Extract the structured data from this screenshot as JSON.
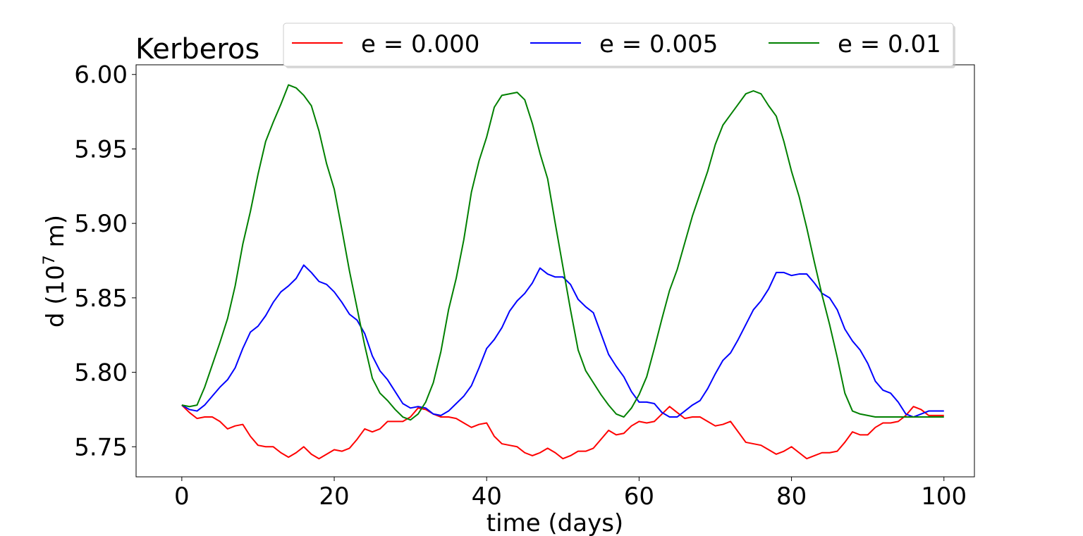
{
  "chart_data": {
    "type": "line",
    "title": "Kerberos",
    "xlabel": "time (days)",
    "ylabel_base": "d (10",
    "ylabel_sup": "7",
    "ylabel_end": " m)",
    "xlim": [
      -6,
      104
    ],
    "ylim": [
      5.7298,
      6.0065
    ],
    "xticks": [
      0,
      20,
      40,
      60,
      80,
      100
    ],
    "xtick_labels": [
      "0",
      "20",
      "40",
      "60",
      "80",
      "100"
    ],
    "yticks": [
      5.75,
      5.8,
      5.85,
      5.9,
      5.95,
      6.0
    ],
    "ytick_labels": [
      "5.75",
      "5.80",
      "5.85",
      "5.90",
      "5.95",
      "6.00"
    ],
    "legend_position": "top-center",
    "x": [
      0,
      1,
      2,
      3,
      4,
      5,
      6,
      7,
      8,
      9,
      10,
      11,
      12,
      13,
      14,
      15,
      16,
      17,
      18,
      19,
      20,
      21,
      22,
      23,
      24,
      25,
      26,
      27,
      28,
      29,
      30,
      31,
      32,
      33,
      34,
      35,
      36,
      37,
      38,
      39,
      40,
      41,
      42,
      43,
      44,
      45,
      46,
      47,
      48,
      49,
      50,
      51,
      52,
      53,
      54,
      55,
      56,
      57,
      58,
      59,
      60,
      61,
      62,
      63,
      64,
      65,
      66,
      67,
      68,
      69,
      70,
      71,
      72,
      73,
      74,
      75,
      76,
      77,
      78,
      79,
      80,
      81,
      82,
      83,
      84,
      85,
      86,
      87,
      88,
      89,
      90,
      91,
      92,
      93,
      94,
      95,
      96,
      97,
      98,
      99,
      100
    ],
    "series": [
      {
        "name": "e = 0.000",
        "color": "#ff0000",
        "values": [
          5.778,
          5.773,
          5.769,
          5.77,
          5.77,
          5.767,
          5.762,
          5.764,
          5.765,
          5.757,
          5.751,
          5.75,
          5.75,
          5.746,
          5.743,
          5.746,
          5.75,
          5.745,
          5.742,
          5.745,
          5.748,
          5.747,
          5.749,
          5.755,
          5.762,
          5.76,
          5.762,
          5.767,
          5.767,
          5.767,
          5.77,
          5.776,
          5.775,
          5.772,
          5.77,
          5.77,
          5.769,
          5.766,
          5.763,
          5.765,
          5.766,
          5.757,
          5.752,
          5.751,
          5.75,
          5.746,
          5.744,
          5.746,
          5.749,
          5.746,
          5.742,
          5.744,
          5.747,
          5.747,
          5.749,
          5.755,
          5.761,
          5.758,
          5.759,
          5.764,
          5.767,
          5.766,
          5.767,
          5.772,
          5.777,
          5.773,
          5.769,
          5.77,
          5.77,
          5.767,
          5.764,
          5.765,
          5.767,
          5.76,
          5.753,
          5.752,
          5.751,
          5.748,
          5.745,
          5.747,
          5.75,
          5.746,
          5.742,
          5.744,
          5.746,
          5.746,
          5.747,
          5.753,
          5.76,
          5.758,
          5.758,
          5.763,
          5.766,
          5.766,
          5.767,
          5.771,
          5.777,
          5.775,
          5.771,
          5.771,
          5.771
        ]
      },
      {
        "name": "e = 0.005",
        "color": "#0000ff",
        "values": [
          5.778,
          5.775,
          5.774,
          5.778,
          5.784,
          5.79,
          5.795,
          5.803,
          5.816,
          5.827,
          5.831,
          5.838,
          5.847,
          5.854,
          5.858,
          5.863,
          5.872,
          5.867,
          5.861,
          5.859,
          5.854,
          5.847,
          5.839,
          5.835,
          5.826,
          5.811,
          5.801,
          5.795,
          5.787,
          5.779,
          5.776,
          5.777,
          5.776,
          5.772,
          5.771,
          5.774,
          5.779,
          5.784,
          5.791,
          5.803,
          5.816,
          5.822,
          5.83,
          5.841,
          5.848,
          5.853,
          5.86,
          5.87,
          5.866,
          5.864,
          5.864,
          5.859,
          5.849,
          5.844,
          5.84,
          5.826,
          5.812,
          5.804,
          5.797,
          5.787,
          5.78,
          5.78,
          5.779,
          5.773,
          5.77,
          5.77,
          5.774,
          5.778,
          5.781,
          5.789,
          5.799,
          5.808,
          5.813,
          5.822,
          5.832,
          5.842,
          5.848,
          5.856,
          5.867,
          5.867,
          5.865,
          5.866,
          5.866,
          5.86,
          5.853,
          5.85,
          5.842,
          5.829,
          5.821,
          5.815,
          5.806,
          5.794,
          5.788,
          5.786,
          5.78,
          5.772,
          5.77,
          5.772,
          5.774,
          5.774,
          5.774
        ]
      },
      {
        "name": "e = 0.01",
        "color": "#008000",
        "values": [
          5.778,
          5.777,
          5.778,
          5.79,
          5.805,
          5.82,
          5.836,
          5.858,
          5.886,
          5.908,
          5.933,
          5.955,
          5.968,
          5.98,
          5.993,
          5.991,
          5.986,
          5.979,
          5.962,
          5.94,
          5.923,
          5.896,
          5.868,
          5.843,
          5.818,
          5.796,
          5.786,
          5.781,
          5.775,
          5.77,
          5.768,
          5.772,
          5.78,
          5.793,
          5.814,
          5.842,
          5.863,
          5.889,
          5.921,
          5.942,
          5.958,
          5.978,
          5.986,
          5.987,
          5.988,
          5.983,
          5.967,
          5.947,
          5.93,
          5.9,
          5.871,
          5.842,
          5.815,
          5.801,
          5.793,
          5.785,
          5.778,
          5.772,
          5.77,
          5.776,
          5.785,
          5.797,
          5.816,
          5.836,
          5.855,
          5.869,
          5.887,
          5.905,
          5.92,
          5.935,
          5.953,
          5.966,
          5.973,
          5.98,
          5.987,
          5.989,
          5.987,
          5.979,
          5.972,
          5.955,
          5.935,
          5.918,
          5.897,
          5.874,
          5.852,
          5.832,
          5.81,
          5.786,
          5.774,
          5.772,
          5.771,
          5.77,
          5.77,
          5.77,
          5.77,
          5.77,
          5.77,
          5.77,
          5.77,
          5.77,
          5.77
        ]
      }
    ]
  }
}
